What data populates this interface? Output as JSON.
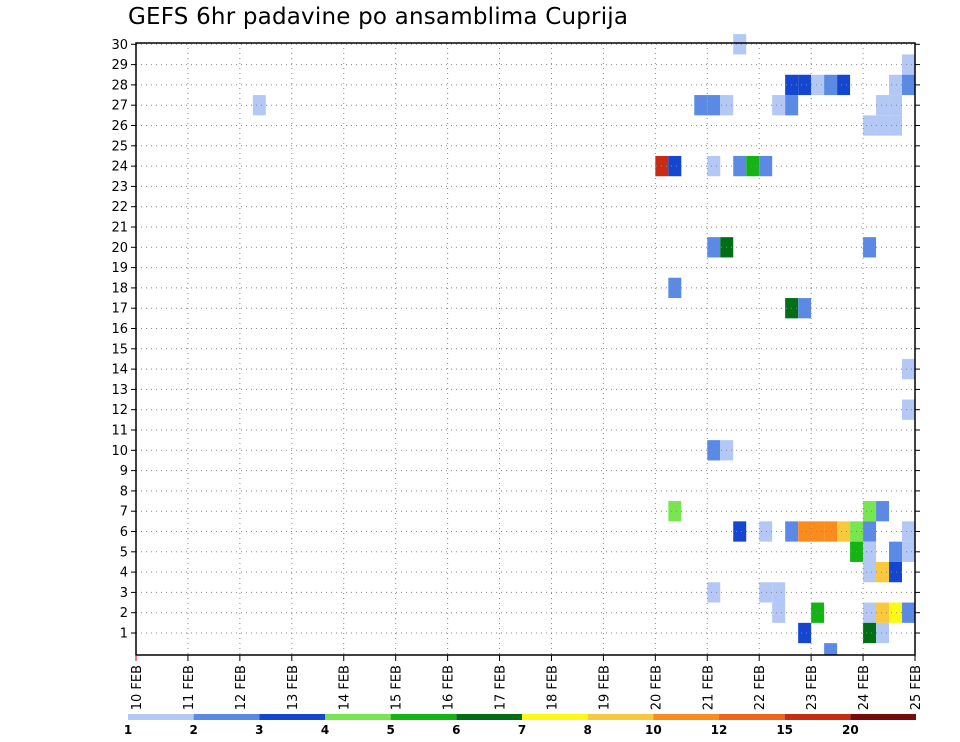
{
  "chart_data": {
    "type": "heatmap",
    "title": "GEFS 6hr padavine po ansamblima Cuprija",
    "xlabel": "",
    "ylabel": "",
    "x_ticks": [
      "10 FEB",
      "11 FEB",
      "12 FEB",
      "13 FEB",
      "14 FEB",
      "15 FEB",
      "16 FEB",
      "17 FEB",
      "18 FEB",
      "19 FEB",
      "20 FEB",
      "21 FEB",
      "22 FEB",
      "23 FEB",
      "24 FEB",
      "25 FEB"
    ],
    "xlim_days": [
      10,
      25
    ],
    "time_step_hours": 6,
    "y_members": [
      1,
      2,
      3,
      4,
      5,
      6,
      7,
      8,
      9,
      10,
      11,
      12,
      13,
      14,
      15,
      16,
      17,
      18,
      19,
      20,
      21,
      22,
      23,
      24,
      25,
      26,
      27,
      28,
      29,
      30
    ],
    "grid": true,
    "legend": {
      "placement": "bottom",
      "thresholds": [
        "1",
        "2",
        "3",
        "4",
        "5",
        "6",
        "7",
        "8",
        "10",
        "12",
        "15",
        "20"
      ],
      "colors": [
        "#b4c8f5",
        "#5a8ae6",
        "#1446d2",
        "#78e650",
        "#14b414",
        "#006e14",
        "#fafa14",
        "#fac83c",
        "#fa8c1e",
        "#f0641e",
        "#c82d14",
        "#780a0a"
      ]
    },
    "cells": [
      {
        "m": 30,
        "d": 21.5,
        "c": 1
      },
      {
        "m": 29,
        "d": 24.75,
        "c": 1
      },
      {
        "m": 28,
        "d": 22.5,
        "c": 3
      },
      {
        "m": 28,
        "d": 22.75,
        "c": 3
      },
      {
        "m": 28,
        "d": 23.0,
        "c": 1
      },
      {
        "m": 28,
        "d": 23.25,
        "c": 2
      },
      {
        "m": 28,
        "d": 23.5,
        "c": 3
      },
      {
        "m": 28,
        "d": 24.5,
        "c": 1
      },
      {
        "m": 28,
        "d": 24.75,
        "c": 2
      },
      {
        "m": 27,
        "d": 12.25,
        "c": 1
      },
      {
        "m": 27,
        "d": 20.75,
        "c": 2
      },
      {
        "m": 27,
        "d": 21.0,
        "c": 2
      },
      {
        "m": 27,
        "d": 21.25,
        "c": 1
      },
      {
        "m": 27,
        "d": 22.25,
        "c": 1
      },
      {
        "m": 27,
        "d": 22.5,
        "c": 2
      },
      {
        "m": 27,
        "d": 24.25,
        "c": 1
      },
      {
        "m": 27,
        "d": 24.5,
        "c": 1
      },
      {
        "m": 26,
        "d": 24.0,
        "c": 1
      },
      {
        "m": 26,
        "d": 24.25,
        "c": 1
      },
      {
        "m": 26,
        "d": 24.5,
        "c": 1
      },
      {
        "m": 24,
        "d": 20.0,
        "c": 11
      },
      {
        "m": 24,
        "d": 20.25,
        "c": 3
      },
      {
        "m": 24,
        "d": 21.0,
        "c": 1
      },
      {
        "m": 24,
        "d": 21.5,
        "c": 2
      },
      {
        "m": 24,
        "d": 21.75,
        "c": 5
      },
      {
        "m": 24,
        "d": 22.0,
        "c": 2
      },
      {
        "m": 20,
        "d": 21.0,
        "c": 2
      },
      {
        "m": 20,
        "d": 21.25,
        "c": 6
      },
      {
        "m": 20,
        "d": 24.0,
        "c": 2
      },
      {
        "m": 18,
        "d": 20.25,
        "c": 2
      },
      {
        "m": 17,
        "d": 22.5,
        "c": 6
      },
      {
        "m": 17,
        "d": 22.75,
        "c": 2
      },
      {
        "m": 14,
        "d": 24.75,
        "c": 1
      },
      {
        "m": 12,
        "d": 24.75,
        "c": 1
      },
      {
        "m": 10,
        "d": 21.0,
        "c": 2
      },
      {
        "m": 10,
        "d": 21.25,
        "c": 1
      },
      {
        "m": 7,
        "d": 20.25,
        "c": 4
      },
      {
        "m": 7,
        "d": 24.0,
        "c": 4
      },
      {
        "m": 7,
        "d": 24.25,
        "c": 2
      },
      {
        "m": 6,
        "d": 21.5,
        "c": 3
      },
      {
        "m": 6,
        "d": 22.0,
        "c": 1
      },
      {
        "m": 6,
        "d": 22.5,
        "c": 2
      },
      {
        "m": 6,
        "d": 22.75,
        "c": 9
      },
      {
        "m": 6,
        "d": 23.0,
        "c": 9
      },
      {
        "m": 6,
        "d": 23.25,
        "c": 9
      },
      {
        "m": 6,
        "d": 23.5,
        "c": 8
      },
      {
        "m": 6,
        "d": 23.75,
        "c": 4
      },
      {
        "m": 6,
        "d": 24.0,
        "c": 2
      },
      {
        "m": 6,
        "d": 24.75,
        "c": 1
      },
      {
        "m": 5,
        "d": 23.75,
        "c": 5
      },
      {
        "m": 5,
        "d": 24.0,
        "c": 1
      },
      {
        "m": 5,
        "d": 24.5,
        "c": 2
      },
      {
        "m": 5,
        "d": 24.75,
        "c": 1
      },
      {
        "m": 4,
        "d": 24.0,
        "c": 1
      },
      {
        "m": 4,
        "d": 24.25,
        "c": 8
      },
      {
        "m": 4,
        "d": 24.5,
        "c": 3
      },
      {
        "m": 3,
        "d": 21.0,
        "c": 1
      },
      {
        "m": 3,
        "d": 22.0,
        "c": 1
      },
      {
        "m": 3,
        "d": 22.25,
        "c": 1
      },
      {
        "m": 2,
        "d": 22.25,
        "c": 1
      },
      {
        "m": 2,
        "d": 23.0,
        "c": 5
      },
      {
        "m": 2,
        "d": 24.0,
        "c": 1
      },
      {
        "m": 2,
        "d": 24.25,
        "c": 8
      },
      {
        "m": 2,
        "d": 24.5,
        "c": 7
      },
      {
        "m": 2,
        "d": 24.75,
        "c": 2
      },
      {
        "m": 1,
        "d": 22.75,
        "c": 3
      },
      {
        "m": 1,
        "d": 24.0,
        "c": 6
      },
      {
        "m": 1,
        "d": 24.25,
        "c": 1
      },
      {
        "m": 0,
        "d": 23.25,
        "c": 2
      }
    ]
  }
}
